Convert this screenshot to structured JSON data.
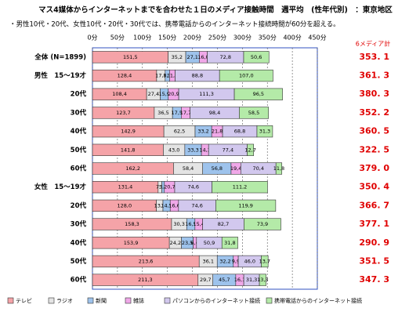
{
  "chart_data": {
    "type": "stacked-bar-horizontal",
    "title": "マス4媒体からインターネットまでを合わせた１日のメディア接触時間　週平均　(性年代別)　：東京地区",
    "subtitle": "・男性10代・20代、女性10代・20代・30代では、携帯電話からのインターネット接続時間が60分を超える。",
    "categories": [
      "全体 (N=1899)",
      "男性　15～19才",
      "20代",
      "30代",
      "40代",
      "50代",
      "60代",
      "女性　15～19才",
      "20代",
      "30代",
      "40代",
      "50代",
      "60代"
    ],
    "xlim": [
      0,
      450
    ],
    "xticks": [
      {
        "value": 0,
        "label": "0分"
      },
      {
        "value": 50,
        "label": "50分"
      },
      {
        "value": 100,
        "label": "100分"
      },
      {
        "value": 150,
        "label": "150分"
      },
      {
        "value": 200,
        "label": "200分"
      },
      {
        "value": 250,
        "label": "250分"
      },
      {
        "value": 300,
        "label": "300分"
      },
      {
        "value": 350,
        "label": "350分"
      },
      {
        "value": 400,
        "label": "400分"
      },
      {
        "value": 450,
        "label": "450分"
      }
    ],
    "grid": true,
    "totals_title": "6メディア計",
    "totals": [
      353.1,
      361.3,
      380.3,
      352.2,
      360.5,
      322.5,
      379.0,
      350.4,
      366.7,
      377.1,
      290.9,
      351.5,
      347.3
    ],
    "totals_labels": [
      "353. 1",
      "361. 3",
      "380. 3",
      "352. 2",
      "360. 5",
      "322. 5",
      "379. 0",
      "350. 4",
      "366. 7",
      "377. 1",
      "290. 9",
      "351. 5",
      "347. 3"
    ],
    "series": [
      {
        "name": "テレビ",
        "color": "#f5a3a8",
        "values": [
          151.5,
          128.4,
          108.4,
          123.7,
          142.9,
          141.8,
          162.2,
          131.4,
          128.0,
          158.3,
          153.9,
          213.6,
          211.3
        ],
        "value_labels": [
          "151,5",
          "128,4",
          "108,4",
          "123,7",
          "142,9",
          "141,8",
          "162,2",
          "131,4",
          "128,0",
          "158,3",
          "153,9",
          "213,6",
          "211,3"
        ]
      },
      {
        "name": "ラジオ",
        "color": "#e4e4e4",
        "values": [
          35.2,
          17.1,
          27.4,
          36.5,
          62.5,
          43.0,
          58.4,
          7.5,
          13.1,
          30.3,
          24.2,
          36.1,
          29.7
        ],
        "value_labels": [
          "35,2",
          "17,1",
          "27,4",
          "36,5",
          "62,5",
          "43,0",
          "58,4",
          "7,5",
          "13,1",
          "30,3",
          "24,2",
          "36,1",
          "29,7"
        ]
      },
      {
        "name": "新聞",
        "color": "#9ec3ec",
        "values": [
          27.1,
          8.7,
          15.9,
          17.5,
          33.2,
          33.3,
          56.8,
          5.0,
          14.5,
          16.5,
          23.5,
          32.2,
          45.7
        ],
        "value_labels": [
          "27,1",
          "8,7",
          "15,9",
          "17,5",
          "33,2",
          "33,3",
          "56,8",
          "5,0",
          "14,5",
          "16,5",
          "23,5",
          "32,2",
          "45,7"
        ]
      },
      {
        "name": "雑誌",
        "color": "#f0a8e8",
        "values": [
          16.0,
          11.3,
          20.9,
          17.7,
          21.8,
          14.3,
          19.4,
          20.7,
          16.6,
          15.4,
          6.6,
          9.9,
          16.1
        ],
        "value_labels": [
          "16,0",
          "11,3",
          "20,9",
          "17,7",
          "21,8",
          "14,3",
          "19,4",
          "20,7",
          "16,6",
          "15,4",
          "6,6",
          "9,9",
          "16,1"
        ]
      },
      {
        "name": "パソコンからのインターネット接続",
        "color": "#d2c8ee",
        "values": [
          72.8,
          88.8,
          111.3,
          98.4,
          68.8,
          77.4,
          70.4,
          74.6,
          74.6,
          82.7,
          50.9,
          46.0,
          31.3
        ],
        "value_labels": [
          "72,8",
          "88,8",
          "111,3",
          "98,4",
          "68,8",
          "77,4",
          "70,4",
          "74,6",
          "74,6",
          "82,7",
          "50,9",
          "46,0",
          "31,3"
        ]
      },
      {
        "name": "携帯電話からのインターネット接続",
        "color": "#b4eaa8",
        "values": [
          50.6,
          107.0,
          96.5,
          58.5,
          31.3,
          12.7,
          11.8,
          111.2,
          119.9,
          73.9,
          31.8,
          13.7,
          13.3
        ],
        "value_labels": [
          "50,6",
          "107,0",
          "96,5",
          "58,5",
          "31,3",
          "12,7",
          "11,8",
          "111,2",
          "119,9",
          "73,9",
          "31,8",
          "13,7",
          "13,3"
        ]
      }
    ]
  }
}
